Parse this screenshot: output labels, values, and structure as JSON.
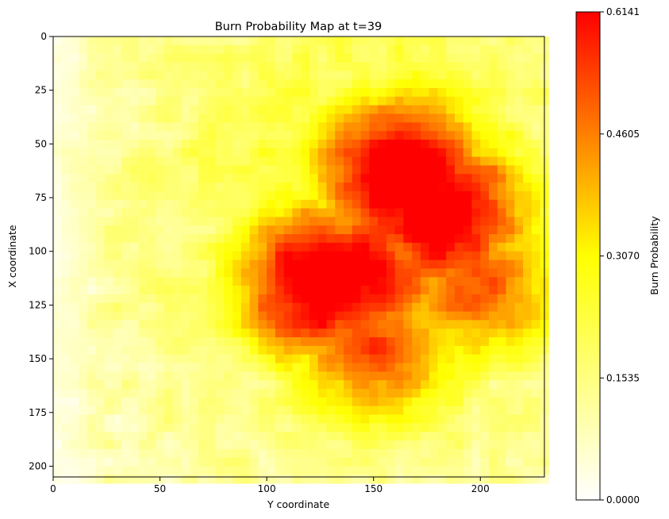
{
  "chart_data": {
    "type": "heatmap",
    "title": "Burn Probability Map at t=39",
    "xlabel": "Y coordinate",
    "ylabel": "X coordinate",
    "xlim": [
      0,
      230
    ],
    "ylim": [
      205,
      0
    ],
    "x_ticks": [
      0,
      50,
      100,
      150,
      200
    ],
    "y_ticks": [
      0,
      25,
      50,
      75,
      100,
      125,
      150,
      175,
      200
    ],
    "x_tick_labels": [
      "0",
      "50",
      "100",
      "150",
      "200"
    ],
    "y_tick_labels": [
      "0",
      "25",
      "50",
      "75",
      "100",
      "125",
      "150",
      "175",
      "200"
    ],
    "colormap": "autumn_r",
    "colormap_stops": [
      "#ffffff",
      "#ffff00",
      "#ff0000"
    ],
    "colorbar": {
      "label": "Burn Probability",
      "min": 0.0,
      "max": 0.6141,
      "ticks": [
        0.0,
        0.1535,
        0.307,
        0.4605,
        0.6141
      ],
      "tick_labels": [
        "0.0000",
        "0.1535",
        "0.3070",
        "0.4605",
        "0.6141"
      ]
    },
    "hotspots": [
      {
        "x": 165,
        "y": 65,
        "peak": 0.614
      },
      {
        "x": 182,
        "y": 82,
        "peak": 0.6
      },
      {
        "x": 125,
        "y": 115,
        "peak": 0.6
      },
      {
        "x": 145,
        "y": 110,
        "peak": 0.52
      },
      {
        "x": 150,
        "y": 145,
        "peak": 0.44
      },
      {
        "x": 200,
        "y": 115,
        "peak": 0.42
      }
    ],
    "grid": false,
    "legend": "colorbar-right"
  }
}
